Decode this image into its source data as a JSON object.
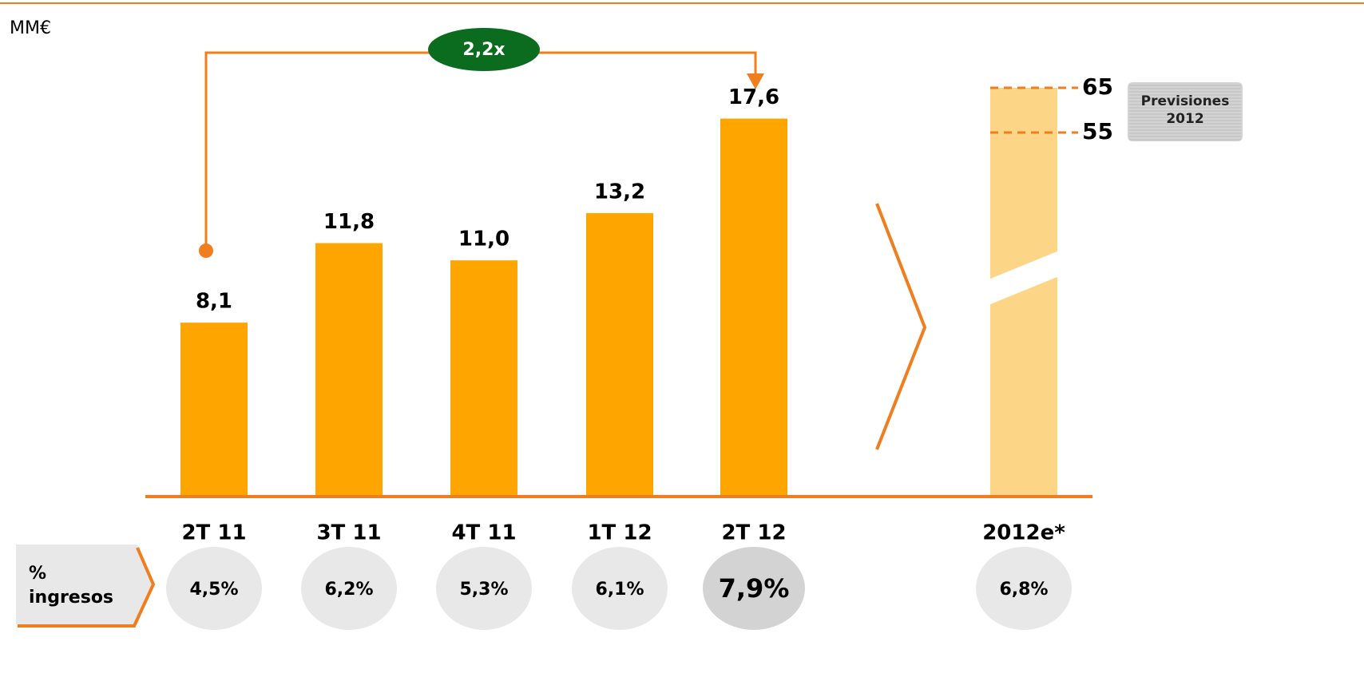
{
  "chart_data": {
    "type": "bar",
    "unit": "MM€",
    "categories": [
      "2T 11",
      "3T 11",
      "4T 11",
      "1T 12",
      "2T 12"
    ],
    "values": [
      8.1,
      11.8,
      11.0,
      13.2,
      17.6
    ],
    "value_labels": [
      "8,1",
      "11,8",
      "11,0",
      "13,2",
      "17,6"
    ],
    "color": "#ffa500",
    "growth": {
      "value": 2.2,
      "label": "2,2x",
      "color": "#0b6b1e"
    },
    "forecast": {
      "category": "2012e*",
      "range": [
        55,
        65
      ],
      "range_labels": [
        "55",
        "65"
      ],
      "note": "Previsiones 2012",
      "color": "#fdd587"
    },
    "row": {
      "label": "% ingresos",
      "values": [
        4.5,
        6.2,
        5.3,
        6.1,
        7.9,
        6.8
      ],
      "value_labels": [
        "4,5%",
        "6,2%",
        "5,3%",
        "6,1%",
        "7,9%",
        "6,8%"
      ],
      "colors": [
        "#e8e8e8",
        "#e8e8e8",
        "#e8e8e8",
        "#e8e8e8",
        "#d3d3d3",
        "#e8e8e8"
      ]
    }
  }
}
